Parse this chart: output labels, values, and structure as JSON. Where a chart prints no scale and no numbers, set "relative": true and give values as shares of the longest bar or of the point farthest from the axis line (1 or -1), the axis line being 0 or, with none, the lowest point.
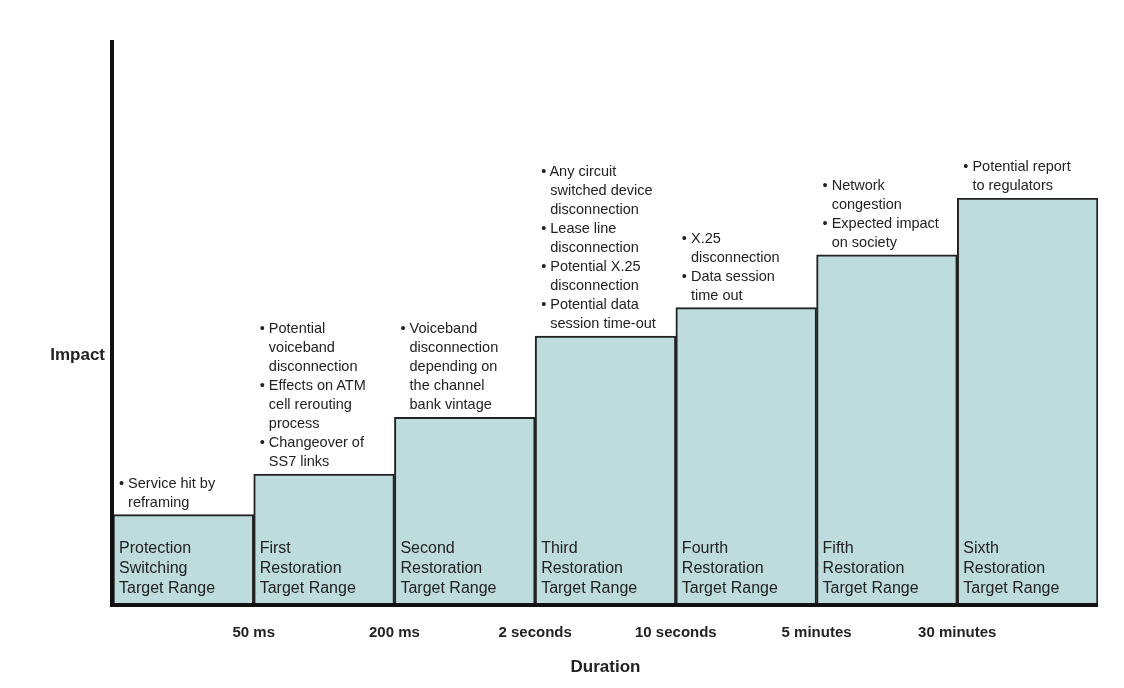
{
  "chart_data": {
    "type": "bar",
    "relative": true,
    "xlabel": "Duration",
    "ylabel": "Impact",
    "grid": false,
    "legend": false,
    "categories": [
      "Protection Switching Target Range",
      "First Restoration Target Range",
      "Second Restoration Target Range",
      "Third Restoration Target Range",
      "Fourth Restoration Target Range",
      "Fifth Restoration Target Range",
      "Sixth Restoration Target Range"
    ],
    "values": [
      0.22,
      0.32,
      0.46,
      0.66,
      0.73,
      0.86,
      1
    ],
    "color": "#bddcdb",
    "annotations": [
      {
        "text": "• Service hit by reframing",
        "x": "Protection Switching Target Range",
        "y": 0.22
      },
      "• Potential voiceband disconnection",
      "• Effects on ATM cell rerouting process",
      {
        "text": "• Changeover of SS7 links",
        "x": "First Restoration Target Range",
        "y": 0.32
      },
      {
        "text": "• Voiceband disconnection depending on the channel bank vintage",
        "x": "Second Restoration Target Range",
        "y": 0.46
      },
      "• Any circuit switched device disconnection",
      "• Lease line disconnection",
      "• Potential X.25 disconnection",
      {
        "text": "• Potential data session time-out",
        "x": "Third Restoration Target Range",
        "y": 0.66
      },
      "• X.25 disconnection",
      {
        "text": "• Data session time out",
        "x": "Fourth Restoration Target Range",
        "y": 0.73
      },
      "• Network congestion",
      {
        "text": "• Expected impact on society",
        "x": "Fifth Restoration Target Range",
        "y": 0.86
      },
      {
        "text": "• Potential report to regulators",
        "x": "Sixth Restoration Target Range",
        "y": 1
      },
      "50 ms",
      "200 ms",
      "2 seconds",
      "10 seconds",
      "5 minutes",
      "30 minutes"
    ]
  }
}
